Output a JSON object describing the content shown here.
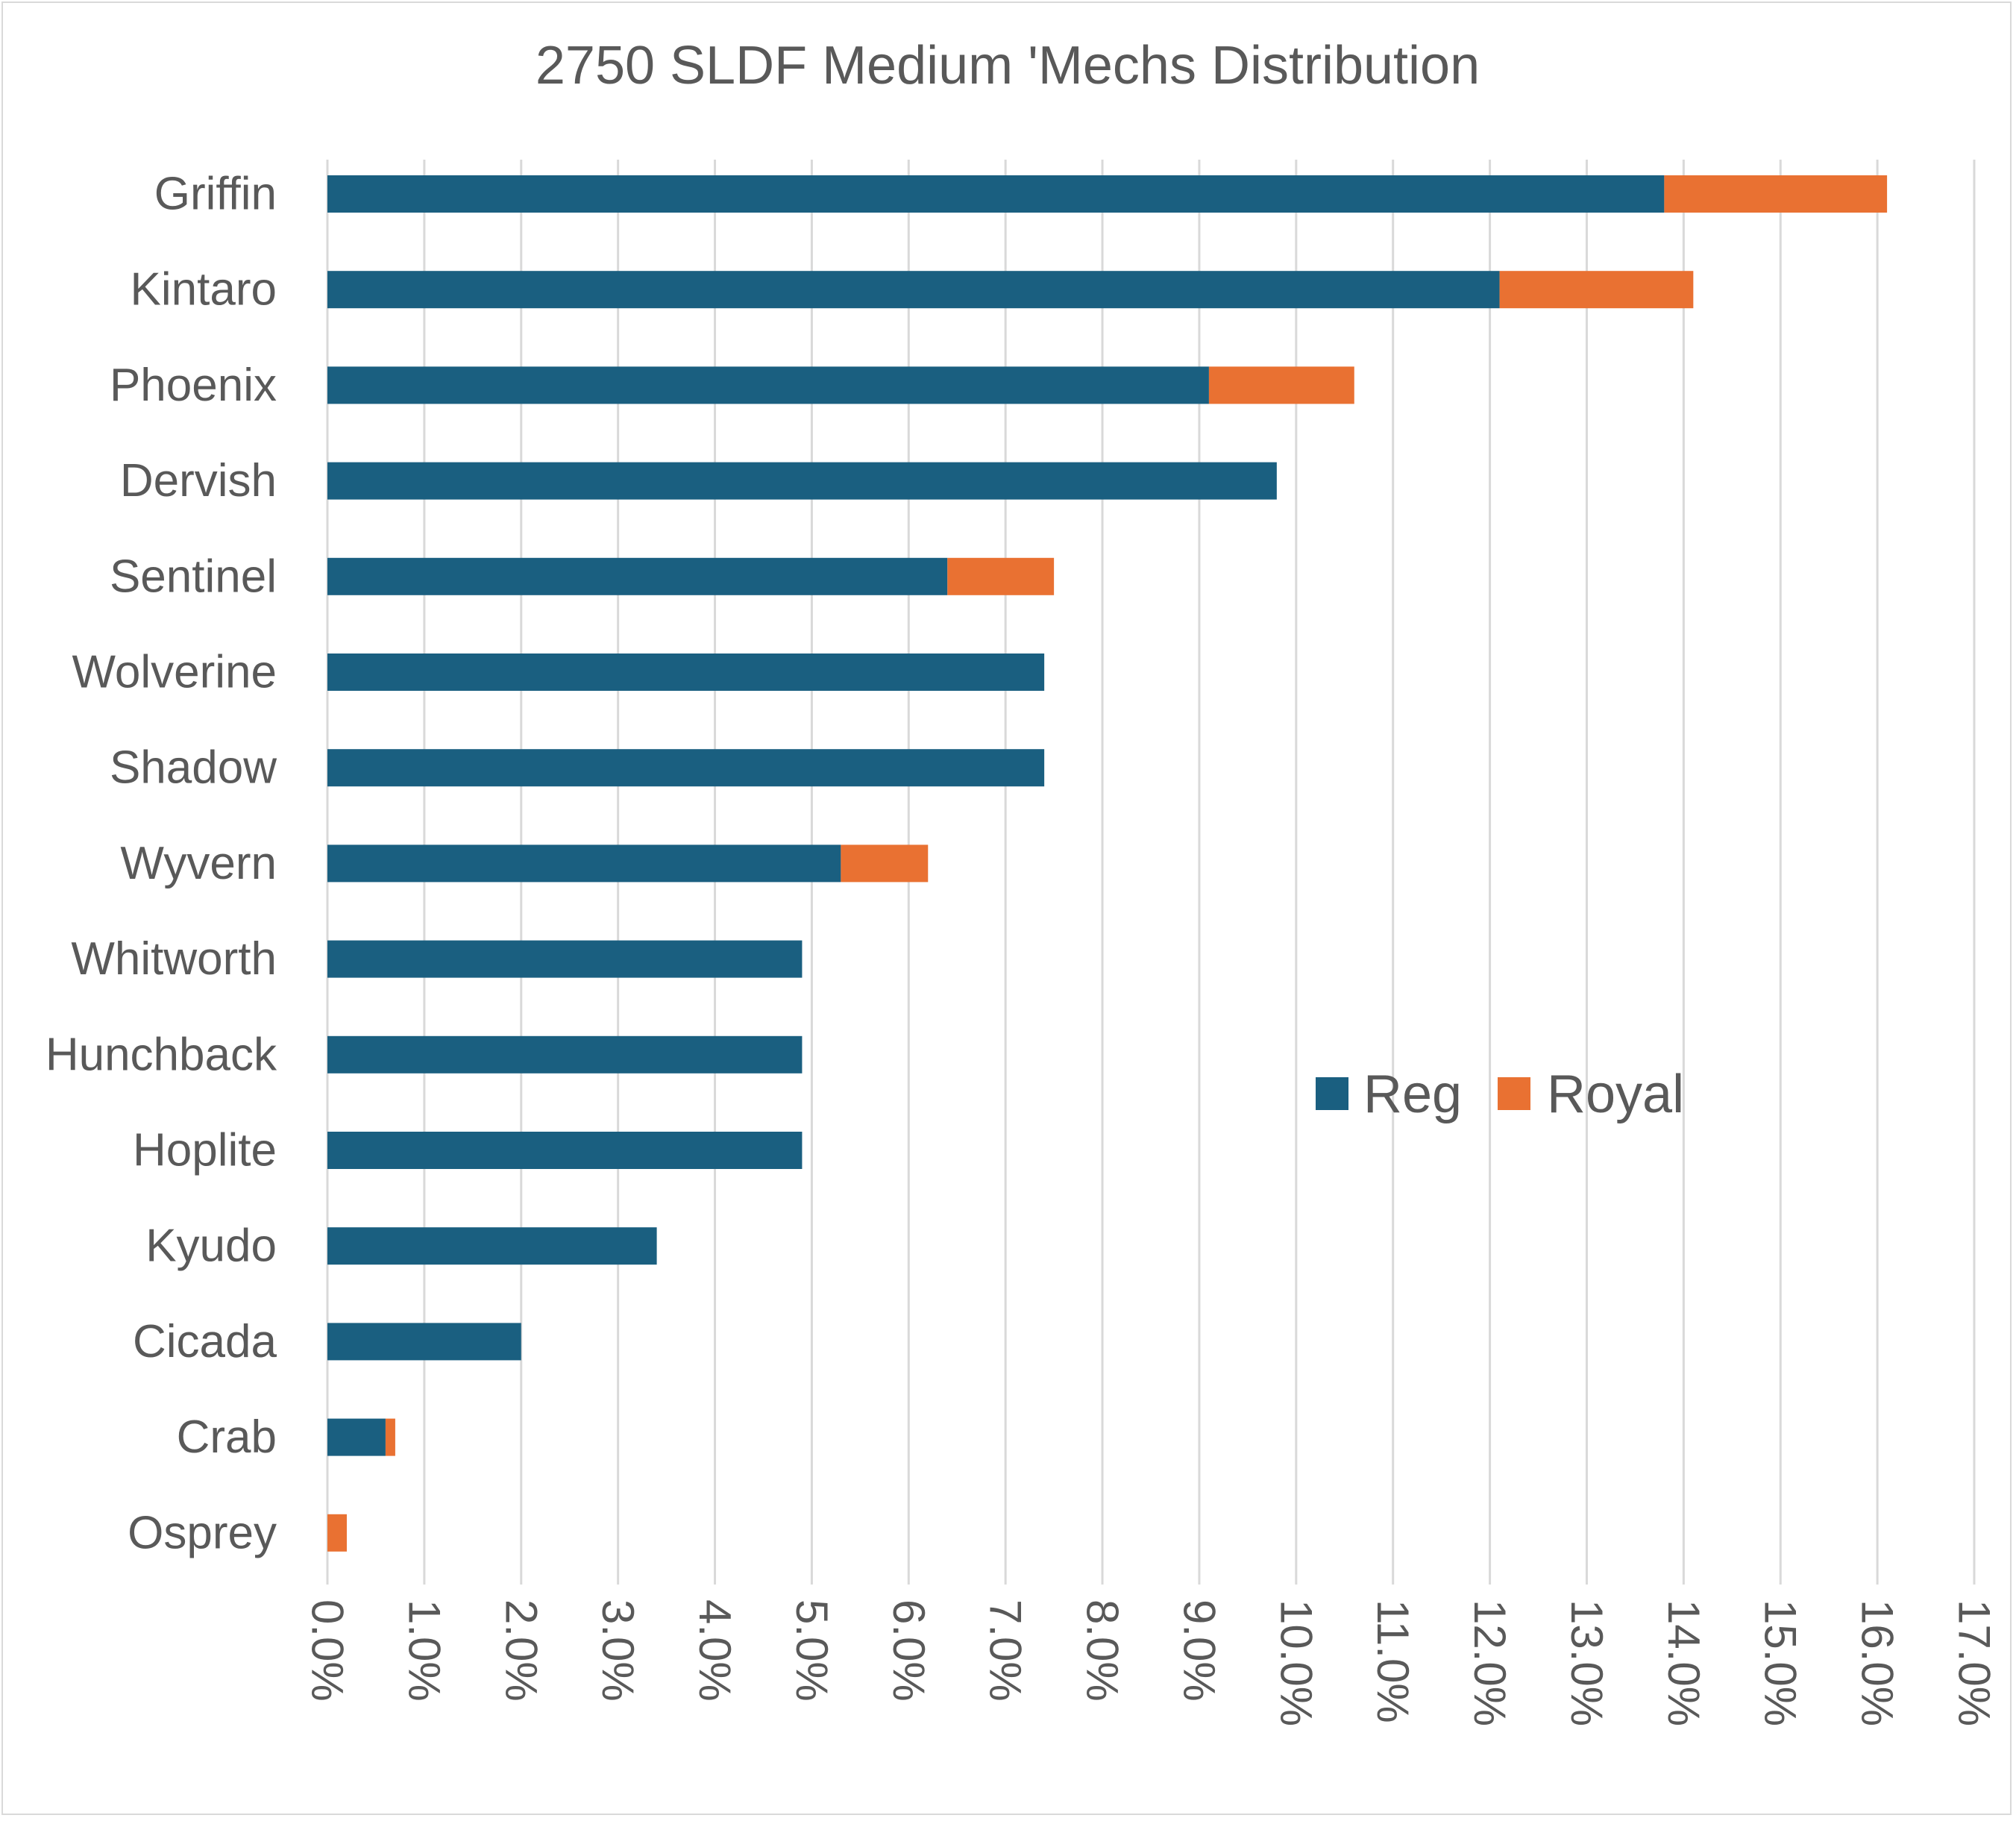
{
  "chart_data": {
    "type": "bar",
    "orientation": "horizontal",
    "stacked": true,
    "title": "2750 SLDF Medium 'Mechs Distribution",
    "categories": [
      "Griffin",
      "Kintaro",
      "Phoenix",
      "Dervish",
      "Sentinel",
      "Wolverine",
      "Shadow",
      "Wyvern",
      "Whitworth",
      "Hunchback",
      "Hoplite",
      "Kyudo",
      "Cicada",
      "Crab",
      "Osprey"
    ],
    "series": [
      {
        "name": "Reg",
        "color": "#1a5f80",
        "values": [
          13.8,
          12.1,
          9.1,
          9.8,
          6.4,
          7.4,
          7.4,
          5.3,
          4.9,
          4.9,
          4.9,
          3.4,
          2.0,
          0.6,
          0.0
        ]
      },
      {
        "name": "Royal",
        "color": "#e97132",
        "values": [
          2.3,
          2.0,
          1.5,
          0.0,
          1.1,
          0.0,
          0.0,
          0.9,
          0.0,
          0.0,
          0.0,
          0.0,
          0.0,
          0.1,
          0.2
        ]
      }
    ],
    "xlim": [
      0,
      17
    ],
    "x_ticks": [
      "0.0%",
      "1.0%",
      "2.0%",
      "3.0%",
      "4.0%",
      "5.0%",
      "6.0%",
      "7.0%",
      "8.0%",
      "9.0%",
      "10.0%",
      "11.0%",
      "12.0%",
      "13.0%",
      "14.0%",
      "15.0%",
      "16.0%",
      "17.0%"
    ],
    "xlabel": "",
    "ylabel": "",
    "grid": "vertical",
    "legend": {
      "placement": "inside-right",
      "entries": [
        "Reg",
        "Royal"
      ]
    }
  }
}
